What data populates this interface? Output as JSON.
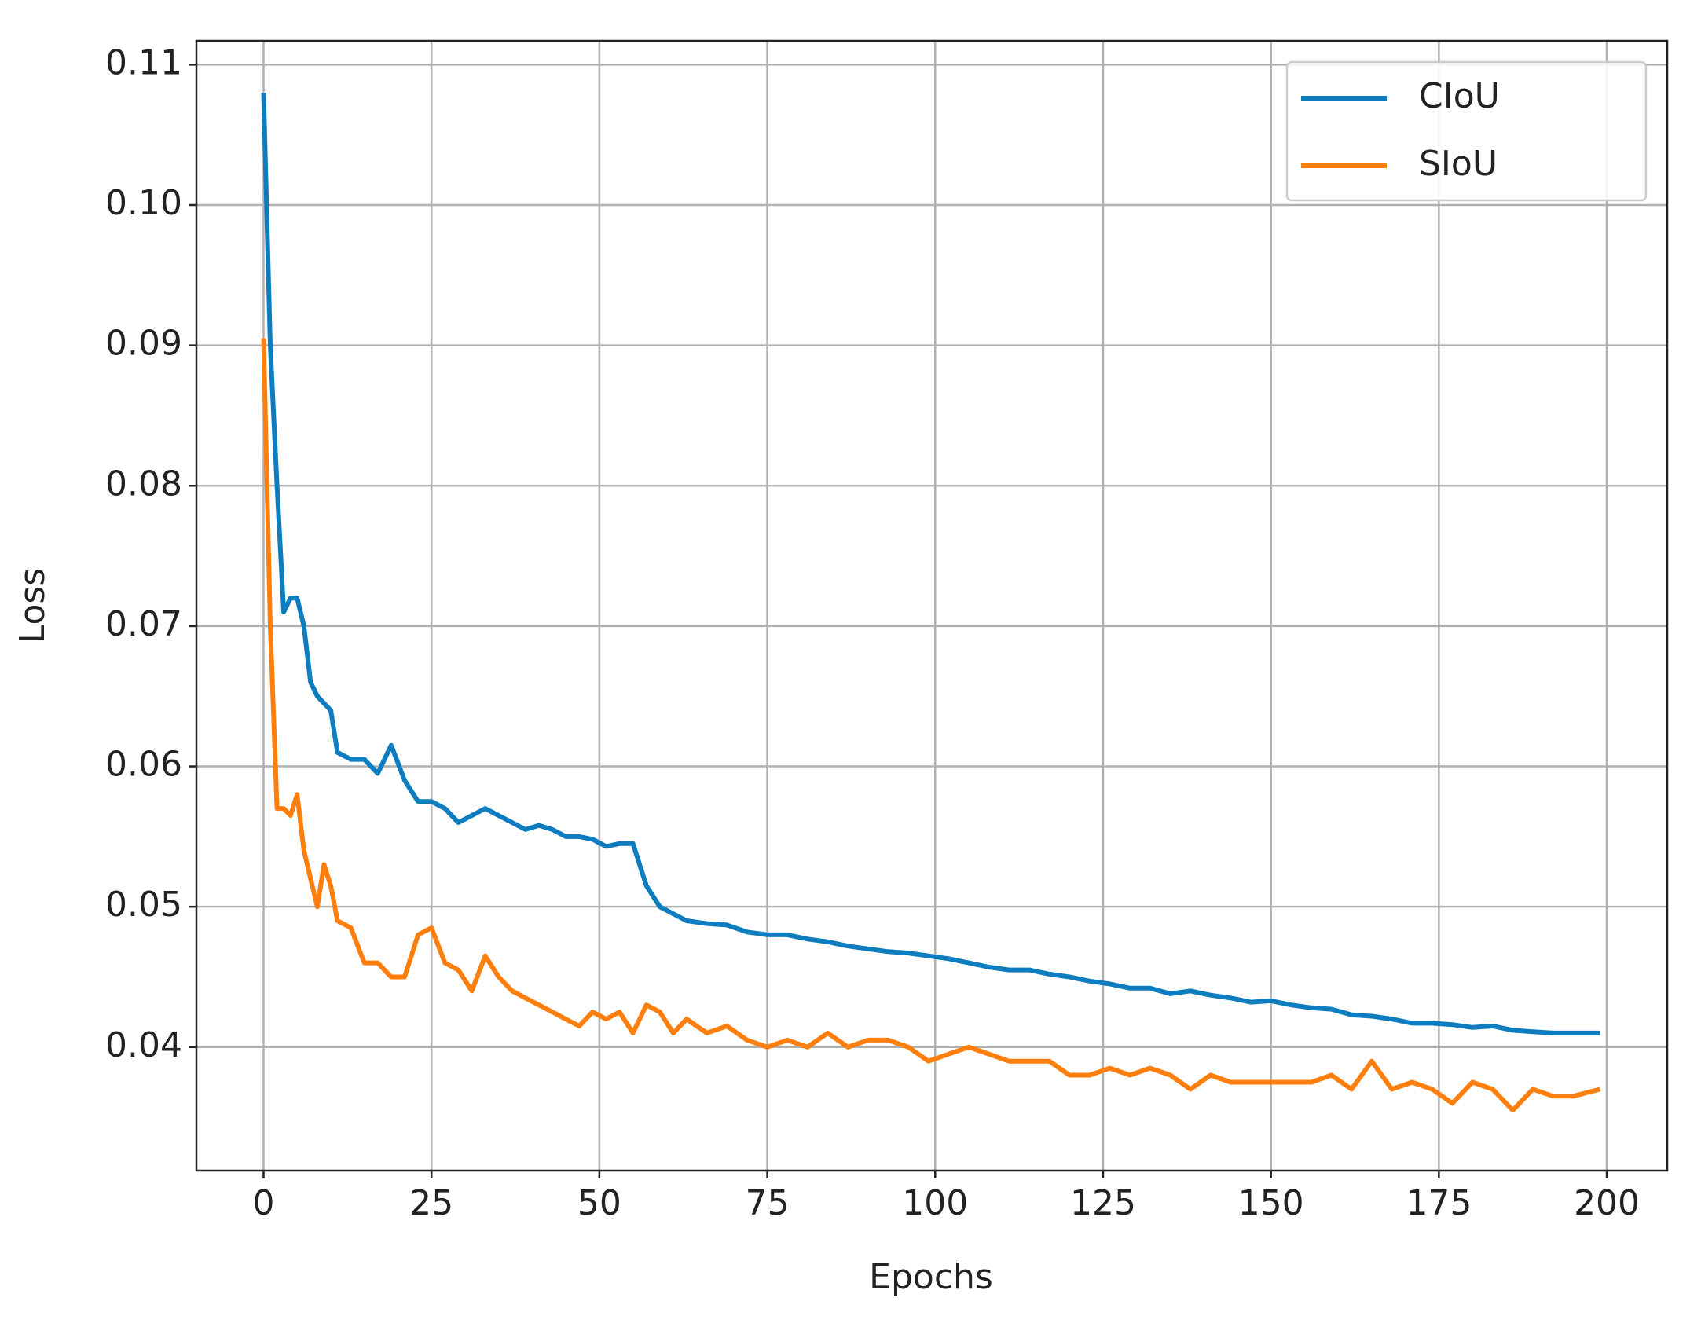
{
  "chart_data": {
    "type": "line",
    "xlabel": "Epochs",
    "ylabel": "Loss",
    "x": [
      0,
      1,
      2,
      3,
      4,
      5,
      6,
      7,
      8,
      9,
      10,
      11,
      13,
      15,
      17,
      19,
      21,
      23,
      25,
      27,
      29,
      31,
      33,
      35,
      37,
      39,
      41,
      43,
      45,
      47,
      49,
      51,
      53,
      55,
      57,
      59,
      61,
      63,
      66,
      69,
      72,
      75,
      78,
      81,
      84,
      87,
      90,
      93,
      96,
      99,
      102,
      105,
      108,
      111,
      114,
      117,
      120,
      123,
      126,
      129,
      132,
      135,
      138,
      141,
      144,
      147,
      150,
      153,
      156,
      159,
      162,
      165,
      168,
      171,
      174,
      177,
      180,
      183,
      186,
      189,
      192,
      195,
      199
    ],
    "series": [
      {
        "name": "CIoU",
        "color": "#0e7dbf",
        "values": [
          0.108,
          0.09,
          0.08,
          0.071,
          0.072,
          0.072,
          0.07,
          0.066,
          0.065,
          0.0645,
          0.064,
          0.061,
          0.0605,
          0.0605,
          0.0595,
          0.0615,
          0.059,
          0.0575,
          0.0575,
          0.057,
          0.056,
          0.0565,
          0.057,
          0.0565,
          0.056,
          0.0555,
          0.0558,
          0.0555,
          0.055,
          0.055,
          0.0548,
          0.0543,
          0.0545,
          0.0545,
          0.0515,
          0.05,
          0.0495,
          0.049,
          0.0488,
          0.0487,
          0.0482,
          0.048,
          0.048,
          0.0477,
          0.0475,
          0.0472,
          0.047,
          0.0468,
          0.0467,
          0.0465,
          0.0463,
          0.046,
          0.0457,
          0.0455,
          0.0455,
          0.0452,
          0.045,
          0.0447,
          0.0445,
          0.0442,
          0.0442,
          0.0438,
          0.044,
          0.0437,
          0.0435,
          0.0432,
          0.0433,
          0.043,
          0.0428,
          0.0427,
          0.0423,
          0.0422,
          0.042,
          0.0417,
          0.0417,
          0.0416,
          0.0414,
          0.0415,
          0.0412,
          0.0411,
          0.041,
          0.041,
          0.041
        ]
      },
      {
        "name": "SIoU",
        "color": "#ff7f0e",
        "values": [
          0.0905,
          0.07,
          0.057,
          0.057,
          0.0565,
          0.058,
          0.054,
          0.052,
          0.05,
          0.053,
          0.0515,
          0.049,
          0.0485,
          0.046,
          0.046,
          0.045,
          0.045,
          0.048,
          0.0485,
          0.046,
          0.0455,
          0.044,
          0.0465,
          0.045,
          0.044,
          0.0435,
          0.043,
          0.0425,
          0.042,
          0.0415,
          0.0425,
          0.042,
          0.0425,
          0.041,
          0.043,
          0.0425,
          0.041,
          0.042,
          0.041,
          0.0415,
          0.0405,
          0.04,
          0.0405,
          0.04,
          0.041,
          0.04,
          0.0405,
          0.0405,
          0.04,
          0.039,
          0.0395,
          0.04,
          0.0395,
          0.039,
          0.039,
          0.039,
          0.038,
          0.038,
          0.0385,
          0.038,
          0.0385,
          0.038,
          0.037,
          0.038,
          0.0375,
          0.0375,
          0.0375,
          0.0375,
          0.0375,
          0.038,
          0.037,
          0.039,
          0.037,
          0.0375,
          0.037,
          0.036,
          0.0375,
          0.037,
          0.0355,
          0.037,
          0.0365,
          0.0365,
          0.037
        ]
      }
    ],
    "xlim": [
      -10,
      209
    ],
    "xticks": [
      0,
      25,
      50,
      75,
      100,
      125,
      150,
      175,
      200
    ],
    "ylim": [
      0.0312,
      0.1117
    ],
    "yticks": [
      0.04,
      0.05,
      0.06,
      0.07,
      0.08,
      0.09,
      {
        "value": 0.1,
        "label": "0.10"
      },
      0.11
    ],
    "grid": true,
    "legend": "upper right"
  }
}
